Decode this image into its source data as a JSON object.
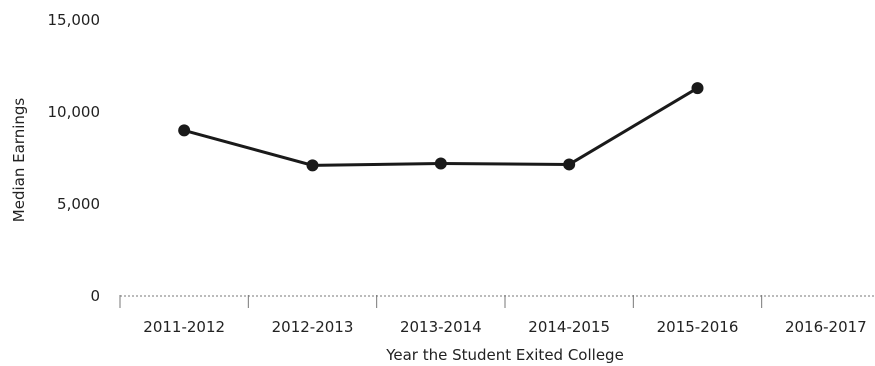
{
  "chart_data": {
    "type": "line",
    "title": "",
    "xlabel": "Year the Student Exited College",
    "ylabel": "Median Earnings",
    "categories": [
      "2011-2012",
      "2012-2013",
      "2013-2014",
      "2014-2015",
      "2015-2016",
      "2016-2017"
    ],
    "series": [
      {
        "values": [
          9000,
          7100,
          7200,
          7150,
          11300,
          null
        ],
        "color": "#1a1a1a"
      }
    ],
    "yticks": [
      0,
      5000,
      10000,
      15000
    ],
    "ytick_labels": [
      "0",
      "5,000",
      "10,000",
      "15,000"
    ],
    "ylim": [
      0,
      15000
    ],
    "grid": false,
    "legend": "none"
  }
}
